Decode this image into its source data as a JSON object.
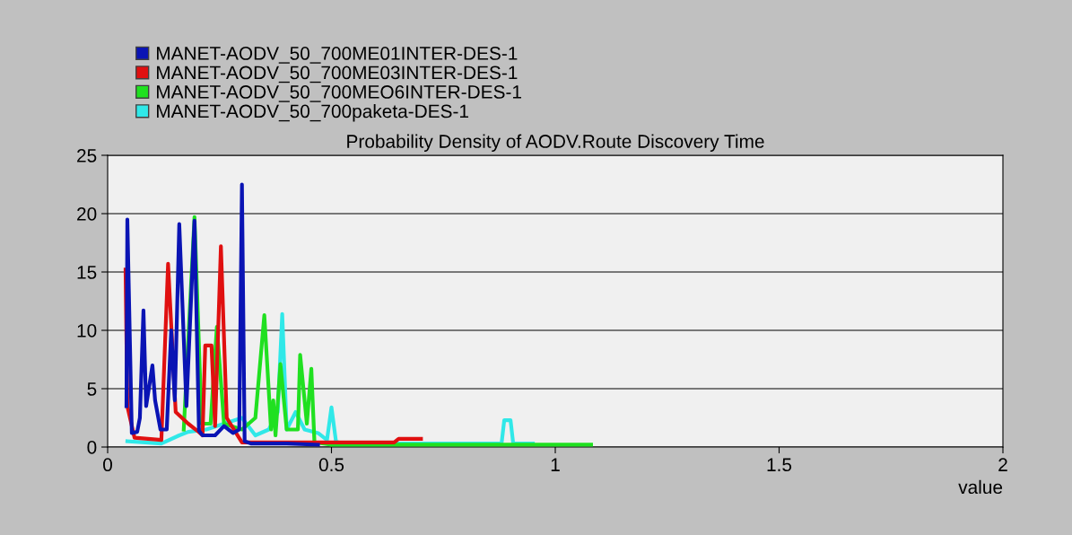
{
  "chart_data": {
    "type": "line",
    "title": "Probability Density of AODV.Route Discovery Time",
    "xlabel": "value",
    "xlim": [
      0,
      2
    ],
    "xticks": [
      0,
      0.5,
      1,
      1.5,
      2
    ],
    "ylim": [
      0,
      25
    ],
    "yticks": [
      0,
      5,
      10,
      15,
      20,
      25
    ],
    "grid": "y",
    "legend": "top left",
    "line_style": "solid",
    "marker": "none",
    "series": [
      {
        "name": "MANET-AODV_50_700ME01INTER-DES-1",
        "color": "#0a14b4",
        "x": [
          0.042,
          0.044,
          0.054,
          0.066,
          0.072,
          0.08,
          0.086,
          0.1,
          0.106,
          0.118,
          0.132,
          0.142,
          0.15,
          0.16,
          0.176,
          0.194,
          0.204,
          0.212,
          0.24,
          0.26,
          0.28,
          0.294,
          0.3,
          0.306,
          0.32,
          0.4,
          0.47
        ],
        "values": [
          3.5,
          19.5,
          1.2,
          1.3,
          2.5,
          11.7,
          3.5,
          7.0,
          4.0,
          1.5,
          1.5,
          10.0,
          4.0,
          19.1,
          3.5,
          19.4,
          1.4,
          1.0,
          1.0,
          1.8,
          1.2,
          1.5,
          22.5,
          0.5,
          0.3,
          0.3,
          0.2
        ]
      },
      {
        "name": "MANET-AODV_50_700ME03INTER-DES-1",
        "color": "#e01010",
        "x": [
          0.04,
          0.044,
          0.06,
          0.12,
          0.135,
          0.152,
          0.18,
          0.2,
          0.212,
          0.218,
          0.232,
          0.24,
          0.253,
          0.266,
          0.3,
          0.64,
          0.65,
          0.7
        ],
        "values": [
          15.2,
          3.5,
          0.8,
          0.6,
          15.7,
          3.0,
          2.0,
          1.4,
          1.0,
          8.7,
          8.7,
          1.8,
          17.2,
          2.5,
          0.4,
          0.4,
          0.7,
          0.7
        ]
      },
      {
        "name": "MANET-AODV_50_700MEO6INTER-DES-1",
        "color": "#20e020",
        "x": [
          0.17,
          0.194,
          0.21,
          0.23,
          0.244,
          0.26,
          0.3,
          0.33,
          0.35,
          0.365,
          0.37,
          0.375,
          0.386,
          0.4,
          0.425,
          0.43,
          0.445,
          0.455,
          0.462,
          0.5,
          1.08
        ],
        "values": [
          1.5,
          19.7,
          2.0,
          2.0,
          10.3,
          2.0,
          1.5,
          2.5,
          11.3,
          1.5,
          4.0,
          1.0,
          7.1,
          1.5,
          1.5,
          7.9,
          2.0,
          6.7,
          0.4,
          0.2,
          0.2
        ]
      },
      {
        "name": "MANET-AODV_50_700paketa-DES-1",
        "color": "#30e8e8",
        "x": [
          0.044,
          0.12,
          0.16,
          0.18,
          0.22,
          0.3,
          0.33,
          0.36,
          0.38,
          0.39,
          0.4,
          0.42,
          0.44,
          0.47,
          0.49,
          0.5,
          0.51,
          0.52,
          0.88,
          0.886,
          0.9,
          0.906,
          0.95
        ],
        "values": [
          0.5,
          0.3,
          1.0,
          1.3,
          1.5,
          2.5,
          1.0,
          1.5,
          3.0,
          11.4,
          1.5,
          3.0,
          1.5,
          1.2,
          0.6,
          3.4,
          0.5,
          0.3,
          0.3,
          2.3,
          2.3,
          0.3,
          0.3
        ]
      }
    ]
  }
}
